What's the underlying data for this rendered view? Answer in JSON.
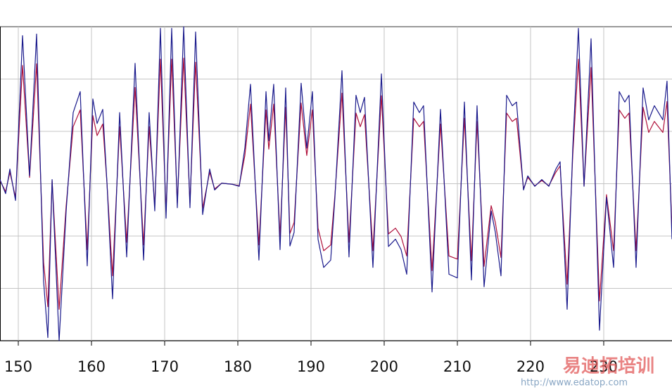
{
  "chart_data": {
    "type": "line",
    "x": [
      147.5,
      148.27,
      148.85,
      149.62,
      150.58,
      151.54,
      152.5,
      153.46,
      154.04,
      154.62,
      155.58,
      156.54,
      157.5,
      158.46,
      159.42,
      160.19,
      160.77,
      161.54,
      162.12,
      162.88,
      163.85,
      164.81,
      165.96,
      167.12,
      167.88,
      168.65,
      169.42,
      170.19,
      170.96,
      171.73,
      172.6,
      173.46,
      174.23,
      175.19,
      176.15,
      176.83,
      177.79,
      179.23,
      180.19,
      180.96,
      181.73,
      182.88,
      183.85,
      184.23,
      184.9,
      185.77,
      186.54,
      187.12,
      187.69,
      188.65,
      189.42,
      190.19,
      190.96,
      191.73,
      192.69,
      193.27,
      194.23,
      195.19,
      196.15,
      196.73,
      197.31,
      198.46,
      199.62,
      200.58,
      201.54,
      202.31,
      203.08,
      204.04,
      204.81,
      205.38,
      206.54,
      207.69,
      208.85,
      210.0,
      210.96,
      211.92,
      212.69,
      213.65,
      214.62,
      215.19,
      215.96,
      216.73,
      217.5,
      218.08,
      219.04,
      219.62,
      220.58,
      221.54,
      222.5,
      223.46,
      224.04,
      225.0,
      225.77,
      226.54,
      227.31,
      228.27,
      229.42,
      230.38,
      231.35,
      232.12,
      232.88,
      233.46,
      234.42,
      235.38,
      236.15,
      236.92,
      238.08,
      238.65,
      239.33
    ],
    "series": [
      {
        "color": "#b0103a",
        "values": [
          0.06,
          -0.15,
          0.22,
          -0.26,
          2.26,
          0.12,
          2.29,
          -1.5,
          -2.35,
          0.06,
          -2.4,
          -0.42,
          1.09,
          1.41,
          -1.26,
          1.3,
          0.92,
          1.14,
          0.01,
          -1.76,
          1.09,
          -1.12,
          1.84,
          -1.17,
          1.09,
          -0.42,
          2.38,
          -0.53,
          2.38,
          -0.37,
          2.4,
          -0.37,
          2.32,
          -0.47,
          0.22,
          -0.1,
          0.01,
          -0.01,
          -0.04,
          0.54,
          1.52,
          -1.17,
          1.41,
          0.66,
          1.52,
          -1.01,
          1.46,
          -0.95,
          -0.74,
          1.54,
          0.54,
          1.41,
          -0.85,
          -1.28,
          -1.17,
          -0.21,
          1.73,
          -1.12,
          1.35,
          1.09,
          1.32,
          -1.28,
          1.68,
          -0.96,
          -0.85,
          -1.01,
          -1.38,
          1.25,
          1.09,
          1.19,
          -1.66,
          1.14,
          -1.38,
          -1.44,
          1.25,
          -1.47,
          1.19,
          -1.58,
          -0.42,
          -0.74,
          -1.41,
          1.35,
          1.19,
          1.25,
          -0.1,
          0.12,
          -0.04,
          0.06,
          -0.04,
          0.22,
          0.34,
          -1.92,
          0.54,
          2.38,
          -0.04,
          2.22,
          -2.24,
          -0.21,
          -1.28,
          1.41,
          1.25,
          1.35,
          -1.28,
          1.46,
          0.98,
          1.19,
          0.98,
          1.57,
          -0.85
        ]
      },
      {
        "color": "#1a1a8c",
        "values": [
          0.08,
          -0.19,
          0.28,
          -0.32,
          2.83,
          0.15,
          2.86,
          -1.87,
          -2.94,
          0.08,
          -3,
          -0.52,
          1.36,
          1.76,
          -1.57,
          1.62,
          1.15,
          1.42,
          0.01,
          -2.2,
          1.36,
          -1.4,
          2.3,
          -1.46,
          1.36,
          -0.52,
          2.97,
          -0.66,
          2.97,
          -0.46,
          3,
          -0.46,
          2.9,
          -0.59,
          0.28,
          -0.12,
          0.01,
          -0.01,
          -0.05,
          0.68,
          1.9,
          -1.46,
          1.76,
          0.82,
          1.9,
          -1.26,
          1.83,
          -1.19,
          -0.93,
          1.92,
          0.68,
          1.76,
          -1.06,
          -1.6,
          -1.46,
          -0.26,
          2.16,
          -1.4,
          1.69,
          1.36,
          1.65,
          -1.6,
          2.1,
          -1.2,
          -1.06,
          -1.26,
          -1.73,
          1.56,
          1.36,
          1.49,
          -2.07,
          1.42,
          -1.73,
          -1.8,
          1.56,
          -1.84,
          1.49,
          -1.97,
          -0.52,
          -0.93,
          -1.76,
          1.69,
          1.49,
          1.56,
          -0.12,
          0.15,
          -0.05,
          0.08,
          -0.05,
          0.28,
          0.42,
          -2.4,
          0.68,
          2.97,
          -0.05,
          2.77,
          -2.8,
          -0.26,
          -1.6,
          1.76,
          1.56,
          1.69,
          -1.6,
          1.83,
          1.22,
          1.49,
          1.22,
          1.96,
          -1.06
        ]
      }
    ],
    "xlim": [
      147.5,
      239.33
    ],
    "xticks": [
      150,
      160,
      170,
      180,
      190,
      200,
      210,
      220,
      230
    ],
    "ylim": [
      -3,
      3
    ],
    "yticks": [
      -3,
      -2,
      -1,
      0,
      1,
      2,
      3
    ],
    "grid": true,
    "watermark": [
      "易迪拓培训",
      "http://www.edatop.com"
    ]
  }
}
